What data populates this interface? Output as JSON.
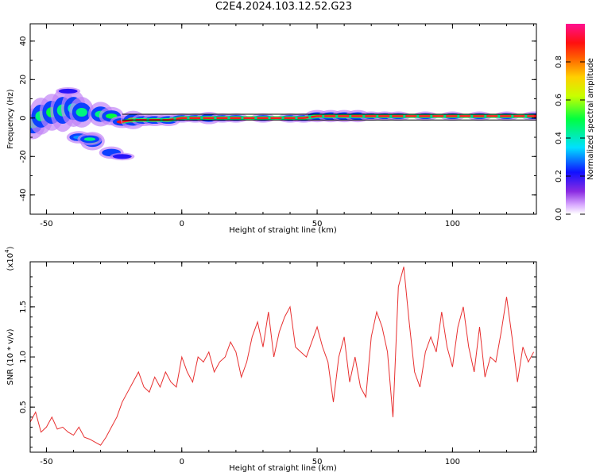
{
  "title": "C2E4.2024.103.12.52.G23",
  "chart_data": [
    {
      "type": "heatmap",
      "xlabel": "Height of straight line (km)",
      "ylabel": "Frequency (Hz)",
      "xlim": [
        -56,
        131
      ],
      "ylim": [
        -50,
        49
      ],
      "xticks": [
        -50,
        0,
        50,
        100
      ],
      "yticks": [
        40,
        20,
        0,
        -20,
        -40
      ],
      "xtick_labels": [
        "-50",
        "0",
        "50",
        "100"
      ],
      "ytick_labels": [
        "40",
        "20",
        "0",
        "-20",
        "-40"
      ],
      "colorbar": {
        "label": "Normalized spectral amplitude",
        "range": [
          0,
          1
        ],
        "ticks": [
          0.0,
          0.2,
          0.4,
          0.6,
          0.8
        ],
        "tick_labels": [
          "0.0",
          "0.2",
          "0.4",
          "0.6",
          "0.8"
        ],
        "colormap": "rainbow (white-purple-blue-cyan-green-yellow-orange-red-magenta)"
      },
      "reference_lines": [
        {
          "name": "line-upper",
          "y": 2,
          "color": "#000000"
        },
        {
          "name": "line-lower",
          "y": -1,
          "color": "#000000"
        }
      ],
      "trace": [
        {
          "x": -55,
          "y": -3,
          "w": 5,
          "a": 0.45
        },
        {
          "x": -52,
          "y": 1,
          "w": 6,
          "a": 0.45
        },
        {
          "x": -48,
          "y": 3,
          "w": 6,
          "a": 0.5
        },
        {
          "x": -44,
          "y": 4,
          "w": 7,
          "a": 0.45
        },
        {
          "x": -40,
          "y": 5,
          "w": 6,
          "a": 0.4
        },
        {
          "x": -37,
          "y": 3,
          "w": 5,
          "a": 0.45
        },
        {
          "x": -33,
          "y": -12,
          "w": 3,
          "a": 0.5
        },
        {
          "x": -30,
          "y": 2,
          "w": 4,
          "a": 0.45
        },
        {
          "x": -26,
          "y": 1,
          "w": 3,
          "a": 0.5
        },
        {
          "x": -22,
          "y": -2,
          "w": 2,
          "a": 0.9
        },
        {
          "x": -18,
          "y": -1,
          "w": 3,
          "a": 0.8
        },
        {
          "x": -14,
          "y": -1,
          "w": 2,
          "a": 0.7
        },
        {
          "x": -10,
          "y": -1,
          "w": 2,
          "a": 0.8
        },
        {
          "x": -5,
          "y": -1,
          "w": 2,
          "a": 0.75
        },
        {
          "x": 0,
          "y": 0,
          "w": 1.5,
          "a": 0.9
        },
        {
          "x": 5,
          "y": 0,
          "w": 1.5,
          "a": 0.85
        },
        {
          "x": 10,
          "y": 0,
          "w": 2,
          "a": 0.6
        },
        {
          "x": 15,
          "y": 0,
          "w": 1.5,
          "a": 0.95
        },
        {
          "x": 20,
          "y": 0,
          "w": 1.5,
          "a": 0.95
        },
        {
          "x": 30,
          "y": 0,
          "w": 1.5,
          "a": 0.95
        },
        {
          "x": 40,
          "y": 0,
          "w": 1.5,
          "a": 0.9
        },
        {
          "x": 45,
          "y": 0,
          "w": 1.5,
          "a": 0.85
        },
        {
          "x": 50,
          "y": 1,
          "w": 2,
          "a": 0.55
        },
        {
          "x": 55,
          "y": 1,
          "w": 2,
          "a": 0.6
        },
        {
          "x": 60,
          "y": 1,
          "w": 2,
          "a": 0.7
        },
        {
          "x": 65,
          "y": 1,
          "w": 2,
          "a": 0.85
        },
        {
          "x": 70,
          "y": 1,
          "w": 1.5,
          "a": 0.9
        },
        {
          "x": 75,
          "y": 1,
          "w": 1.5,
          "a": 0.8
        },
        {
          "x": 80,
          "y": 1,
          "w": 1.5,
          "a": 0.95
        },
        {
          "x": 90,
          "y": 1,
          "w": 1.5,
          "a": 0.95
        },
        {
          "x": 100,
          "y": 1,
          "w": 1.5,
          "a": 0.9
        },
        {
          "x": 110,
          "y": 1,
          "w": 1.5,
          "a": 0.9
        },
        {
          "x": 120,
          "y": 1,
          "w": 1.5,
          "a": 0.9
        },
        {
          "x": 130,
          "y": 1,
          "w": 1.5,
          "a": 0.9
        }
      ],
      "outliers": [
        {
          "x": -42,
          "y": 14,
          "w": 1,
          "a": 0.2
        },
        {
          "x": -38,
          "y": -10,
          "w": 2,
          "a": 0.3
        },
        {
          "x": -34,
          "y": -11,
          "w": 2,
          "a": 0.45
        },
        {
          "x": -26,
          "y": -18,
          "w": 2,
          "a": 0.25
        },
        {
          "x": -22,
          "y": -20,
          "w": 1,
          "a": 0.2
        }
      ]
    },
    {
      "type": "line",
      "xlabel": "Height of straight line (km)",
      "ylabel": "SNR (10 * v/v)",
      "yscale_note": "(x10",
      "yscale_exp": "4",
      "yscale_close": ")",
      "xlim": [
        -56,
        131
      ],
      "ylim": [
        0.05,
        1.95
      ],
      "xticks": [
        -50,
        0,
        50,
        100
      ],
      "yticks": [
        0.5,
        1.0,
        1.5
      ],
      "xtick_labels": [
        "-50",
        "0",
        "50",
        "100"
      ],
      "ytick_labels": [
        "0.5",
        "1.0",
        "1.5"
      ],
      "color": "#e83030",
      "series": [
        {
          "x": [
            -56,
            -54,
            -52,
            -50,
            -48,
            -46,
            -44,
            -42,
            -40,
            -38,
            -36,
            -34,
            -32,
            -30,
            -28,
            -26,
            -24,
            -22,
            -20,
            -18,
            -16,
            -14,
            -12,
            -10,
            -8,
            -6,
            -4,
            -2,
            0,
            2,
            4,
            6,
            8,
            10,
            12,
            14,
            16,
            18,
            20,
            22,
            24,
            26,
            28,
            30,
            32,
            34,
            36,
            38,
            40,
            42,
            44,
            46,
            48,
            50,
            52,
            54,
            56,
            58,
            60,
            62,
            64,
            66,
            68,
            70,
            72,
            74,
            76,
            78,
            80,
            82,
            84,
            86,
            88,
            90,
            92,
            94,
            96,
            98,
            100,
            102,
            104,
            106,
            108,
            110,
            112,
            114,
            116,
            118,
            120,
            122,
            124,
            126,
            128,
            130
          ],
          "y": [
            0.35,
            0.45,
            0.25,
            0.3,
            0.4,
            0.28,
            0.3,
            0.25,
            0.22,
            0.3,
            0.2,
            0.18,
            0.15,
            0.12,
            0.2,
            0.3,
            0.4,
            0.55,
            0.65,
            0.75,
            0.85,
            0.7,
            0.65,
            0.8,
            0.7,
            0.85,
            0.75,
            0.7,
            1.0,
            0.85,
            0.75,
            1.0,
            0.95,
            1.05,
            0.85,
            0.95,
            1.0,
            1.15,
            1.05,
            0.8,
            0.95,
            1.2,
            1.35,
            1.1,
            1.45,
            1.0,
            1.25,
            1.4,
            1.5,
            1.1,
            1.05,
            1.0,
            1.15,
            1.3,
            1.1,
            0.95,
            0.55,
            1.0,
            1.2,
            0.75,
            1.0,
            0.7,
            0.6,
            1.2,
            1.45,
            1.3,
            1.05,
            0.4,
            1.7,
            1.9,
            1.35,
            0.85,
            0.7,
            1.05,
            1.2,
            1.05,
            1.45,
            1.1,
            0.9,
            1.3,
            1.5,
            1.1,
            0.85,
            1.3,
            0.8,
            1.0,
            0.95,
            1.25,
            1.6,
            1.2,
            0.75,
            1.1,
            0.95,
            1.05
          ]
        }
      ]
    }
  ]
}
